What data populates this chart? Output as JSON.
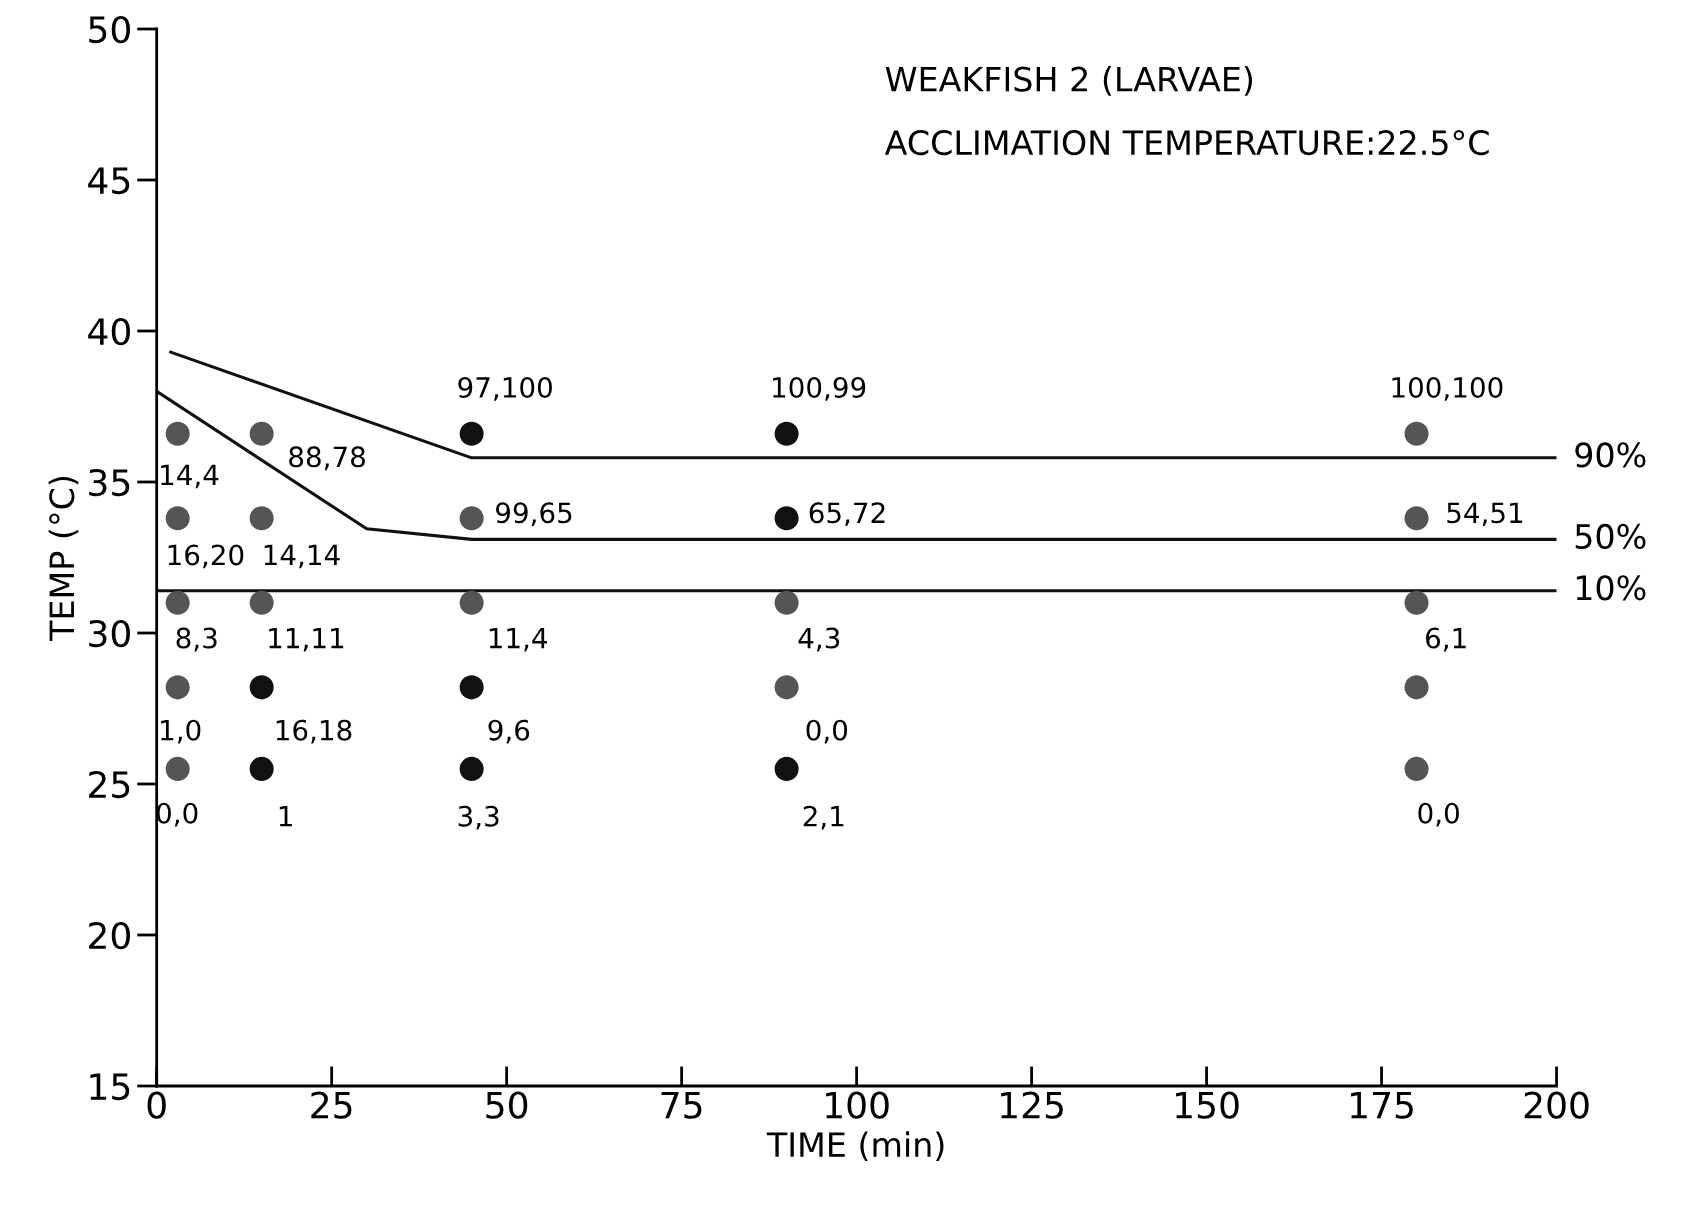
{
  "chart_data": {
    "type": "scatter",
    "title": "WEAKFISH 2 (LARVAE)",
    "subtitle": "ACCLIMATION TEMPERATURE:22.5°C",
    "xlabel": "TIME (min)",
    "ylabel": "TEMP (°C)",
    "xlim": [
      0,
      200
    ],
    "xticks": [
      0,
      25,
      50,
      75,
      100,
      125,
      150,
      175,
      200
    ],
    "ylim": [
      15,
      50
    ],
    "yticks": [
      15,
      20,
      25,
      30,
      35,
      40,
      45,
      50
    ],
    "grid": false,
    "legend": false,
    "marker": "circle",
    "series": [
      {
        "color": "#555555",
        "x": [
          3,
          15,
          3,
          15,
          3,
          15,
          3,
          3,
          45,
          45,
          90,
          90,
          180,
          180,
          180,
          180,
          180
        ],
        "values": [
          36.6,
          36.6,
          33.8,
          33.8,
          31.0,
          31.0,
          28.2,
          25.5,
          33.8,
          31.0,
          31.0,
          28.2,
          36.6,
          33.8,
          31.0,
          28.2,
          25.5
        ]
      },
      {
        "color": "#111111",
        "x": [
          15,
          15,
          45,
          45,
          45,
          90,
          90,
          90
        ],
        "values": [
          28.2,
          25.5,
          36.6,
          28.2,
          25.5,
          36.6,
          33.8,
          25.5
        ]
      },
      {
        "type": "line",
        "name": "90%",
        "color": "#111111",
        "marker": "none",
        "x": [
          2,
          45,
          200
        ],
        "values": [
          39.3,
          35.8,
          35.8
        ]
      },
      {
        "type": "line",
        "name": "50%",
        "color": "#111111",
        "marker": "none",
        "x": [
          0,
          30,
          45,
          200
        ],
        "values": [
          38.0,
          33.45,
          33.1,
          33.1
        ]
      },
      {
        "type": "line",
        "name": "10%",
        "color": "#111111",
        "marker": "none",
        "x": [
          0,
          200
        ],
        "values": [
          31.4,
          31.4
        ]
      }
    ],
    "annotations": [
      {
        "text": "14,4",
        "x": 3,
        "y": 36.6
      },
      {
        "text": "88,78",
        "x": 15,
        "y": 36.6
      },
      {
        "text": "16,20",
        "x": 3,
        "y": 33.8
      },
      {
        "text": "14,14",
        "x": 15,
        "y": 33.8
      },
      {
        "text": "8,3",
        "x": 3,
        "y": 31.0
      },
      {
        "text": "11,11",
        "x": 15,
        "y": 31.0
      },
      {
        "text": "1,0",
        "x": 3,
        "y": 28.2
      },
      {
        "text": "16,18",
        "x": 15,
        "y": 28.2
      },
      {
        "text": "0,0",
        "x": 3,
        "y": 25.5
      },
      {
        "text": "1",
        "x": 15,
        "y": 25.5
      },
      {
        "text": "97,100",
        "x": 45,
        "y": 36.6
      },
      {
        "text": "99,65",
        "x": 45,
        "y": 33.8
      },
      {
        "text": "11,4",
        "x": 45,
        "y": 31.0
      },
      {
        "text": "9,6",
        "x": 45,
        "y": 28.2
      },
      {
        "text": "3,3",
        "x": 45,
        "y": 25.5
      },
      {
        "text": "100,99",
        "x": 90,
        "y": 36.6
      },
      {
        "text": "65,72",
        "x": 90,
        "y": 33.8
      },
      {
        "text": "4,3",
        "x": 90,
        "y": 31.0
      },
      {
        "text": "0,0",
        "x": 90,
        "y": 28.2
      },
      {
        "text": "2,1",
        "x": 90,
        "y": 25.5
      },
      {
        "text": "100,100",
        "x": 180,
        "y": 36.6
      },
      {
        "text": "54,51",
        "x": 180,
        "y": 33.8
      },
      {
        "text": "6,1",
        "x": 180,
        "y": 31.0
      },
      {
        "text": "0,0",
        "x": 180,
        "y": 25.5
      }
    ]
  }
}
